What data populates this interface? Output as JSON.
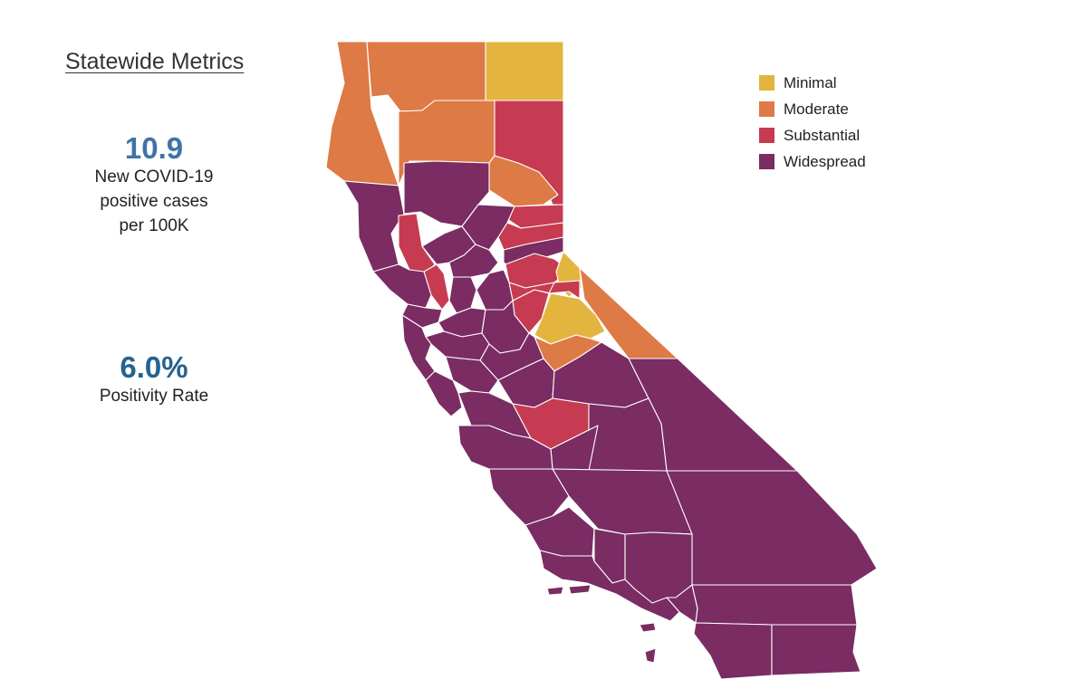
{
  "statewide": {
    "title": "Statewide Metrics",
    "case_rate": {
      "value": "10.9",
      "label_lines": [
        "New COVID-19",
        "positive cases",
        "per 100K"
      ]
    },
    "positivity": {
      "value": "6.0%",
      "label": "Positivity Rate"
    }
  },
  "colors": {
    "case_rate_value": "#3f74a8",
    "positivity_value": "#25628f",
    "Minimal": "#e3b53f",
    "Moderate": "#de7a45",
    "Substantial": "#c63b51",
    "Widespread": "#7a2c63"
  },
  "legend": {
    "items": [
      {
        "label": "Minimal",
        "color": "#e3b53f"
      },
      {
        "label": "Moderate",
        "color": "#de7a45"
      },
      {
        "label": "Substantial",
        "color": "#c63b51"
      },
      {
        "label": "Widespread",
        "color": "#7a2c63"
      }
    ]
  },
  "map": {
    "regions": [
      {
        "tier": "Moderate"
      },
      {
        "tier": "Minimal"
      },
      {
        "tier": "Moderate"
      },
      {
        "tier": "Moderate"
      },
      {
        "tier": "Substantial"
      },
      {
        "tier": "Moderate"
      },
      {
        "tier": "Widespread"
      },
      {
        "tier": "Widespread"
      },
      {
        "tier": "Substantial"
      },
      {
        "tier": "Substantial"
      },
      {
        "tier": "Widespread"
      },
      {
        "tier": "Substantial"
      },
      {
        "tier": "Substantial"
      },
      {
        "tier": "Widespread"
      },
      {
        "tier": "Substantial"
      },
      {
        "tier": "Minimal"
      },
      {
        "tier": "Moderate"
      },
      {
        "tier": "Substantial"
      },
      {
        "tier": "Substantial"
      },
      {
        "tier": "Substantial"
      },
      {
        "tier": "Minimal"
      },
      {
        "tier": "Moderate"
      },
      {
        "tier": "Widespread"
      },
      {
        "tier": "Widespread"
      },
      {
        "tier": "Widespread"
      },
      {
        "tier": "Widespread"
      },
      {
        "tier": "Widespread"
      },
      {
        "tier": "Widespread"
      },
      {
        "tier": "Widespread"
      },
      {
        "tier": "Widespread"
      },
      {
        "tier": "Widespread"
      },
      {
        "tier": "Widespread"
      },
      {
        "tier": "Widespread"
      },
      {
        "tier": "Widespread"
      },
      {
        "tier": "Widespread"
      },
      {
        "tier": "Widespread"
      },
      {
        "tier": "Widespread"
      },
      {
        "tier": "Substantial"
      },
      {
        "tier": "Widespread"
      },
      {
        "tier": "Widespread"
      },
      {
        "tier": "Widespread"
      },
      {
        "tier": "Widespread"
      },
      {
        "tier": "Widespread"
      },
      {
        "tier": "Widespread"
      },
      {
        "tier": "Widespread"
      },
      {
        "tier": "Widespread"
      },
      {
        "tier": "Widespread"
      },
      {
        "tier": "Widespread"
      },
      {
        "tier": "Widespread"
      },
      {
        "tier": "Widespread"
      },
      {
        "tier": "Widespread"
      },
      {
        "tier": "Widespread"
      },
      {
        "tier": "Widespread"
      },
      {
        "tier": "Widespread"
      },
      {
        "tier": "Widespread"
      },
      {
        "tier": "Widespread"
      },
      {
        "tier": "Widespread"
      },
      {
        "tier": "Widespread"
      }
    ]
  }
}
